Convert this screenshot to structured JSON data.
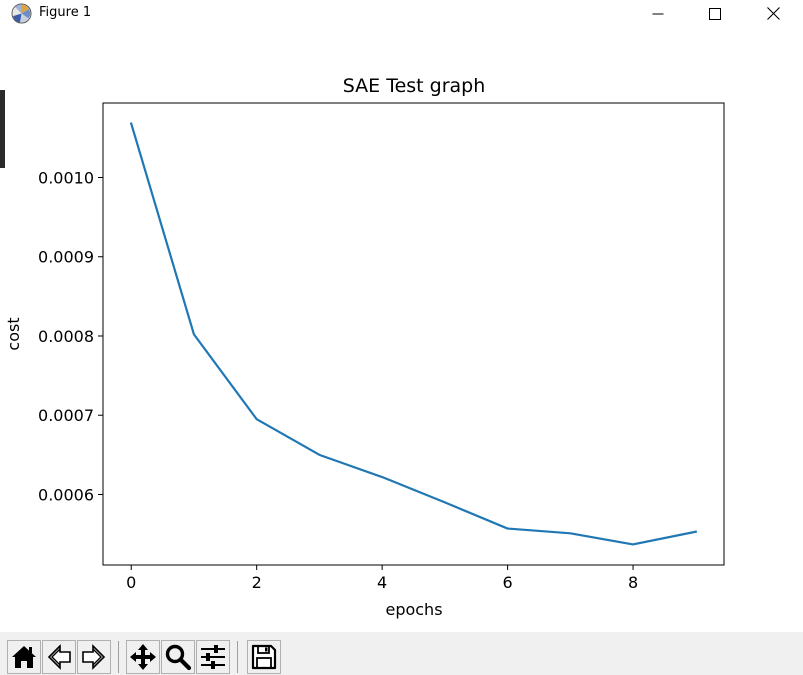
{
  "window": {
    "title": "Figure 1",
    "icons": [
      "matplotlib-logo-icon",
      "minimize-icon",
      "maximize-icon",
      "close-icon"
    ]
  },
  "toolbar": {
    "buttons": [
      {
        "name": "home-button",
        "icon": "home-icon"
      },
      {
        "name": "back-button",
        "icon": "back-arrow-icon"
      },
      {
        "name": "forward-button",
        "icon": "forward-arrow-icon"
      },
      {
        "name": "pan-button",
        "icon": "move-arrows-icon"
      },
      {
        "name": "zoom-button",
        "icon": "magnifier-icon"
      },
      {
        "name": "configure-subplots-button",
        "icon": "sliders-icon"
      },
      {
        "name": "save-button",
        "icon": "floppy-disk-icon"
      }
    ]
  },
  "chart_data": {
    "type": "line",
    "title": "SAE Test graph",
    "xlabel": "epochs",
    "ylabel": "cost",
    "x": [
      0,
      1,
      2,
      3,
      4,
      5,
      6,
      7,
      8,
      9
    ],
    "series": [
      {
        "color": "#1f77b4",
        "values": [
          0.001068,
          0.000802,
          0.000695,
          0.00065,
          0.000622,
          0.00059,
          0.000557,
          0.000551,
          0.000537,
          0.000553
        ]
      }
    ],
    "xlim": [
      -0.45,
      9.45
    ],
    "ylim": [
      0.000511,
      0.001094
    ],
    "xticks": [
      0,
      2,
      4,
      6,
      8
    ],
    "xtick_labels": [
      "0",
      "2",
      "4",
      "6",
      "8"
    ],
    "yticks": [
      0.0006,
      0.0007,
      0.0008,
      0.0009,
      0.001
    ],
    "ytick_labels": [
      "0.0006",
      "0.0007",
      "0.0008",
      "0.0009",
      "0.0010"
    ],
    "grid": false
  }
}
